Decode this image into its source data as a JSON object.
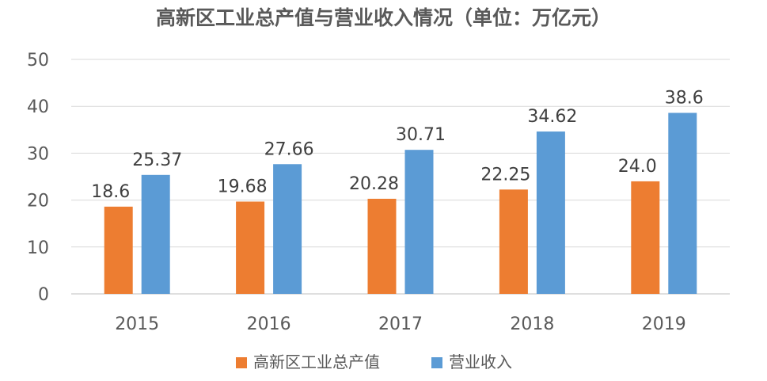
{
  "chart_data": {
    "type": "bar",
    "title": "高新区工业总产值与营业收入情况（单位：万亿元）",
    "categories": [
      "2015",
      "2016",
      "2017",
      "2018",
      "2019"
    ],
    "series": [
      {
        "name": "高新区工业总产值",
        "values": [
          18.6,
          19.68,
          20.28,
          22.25,
          24.0
        ],
        "labels": [
          "18.6",
          "19.68",
          "20.28",
          "22.25",
          "24.0"
        ],
        "color": "#ED7D31"
      },
      {
        "name": "营业收入",
        "values": [
          25.37,
          27.66,
          30.71,
          34.62,
          38.6
        ],
        "labels": [
          "25.37",
          "27.66",
          "30.71",
          "34.62",
          "38.6"
        ],
        "color": "#5B9BD5"
      }
    ],
    "ylim": [
      0,
      50
    ],
    "yticks": [
      "0",
      "10",
      "20",
      "30",
      "40",
      "50"
    ],
    "grid": true,
    "legend": "bottom"
  }
}
